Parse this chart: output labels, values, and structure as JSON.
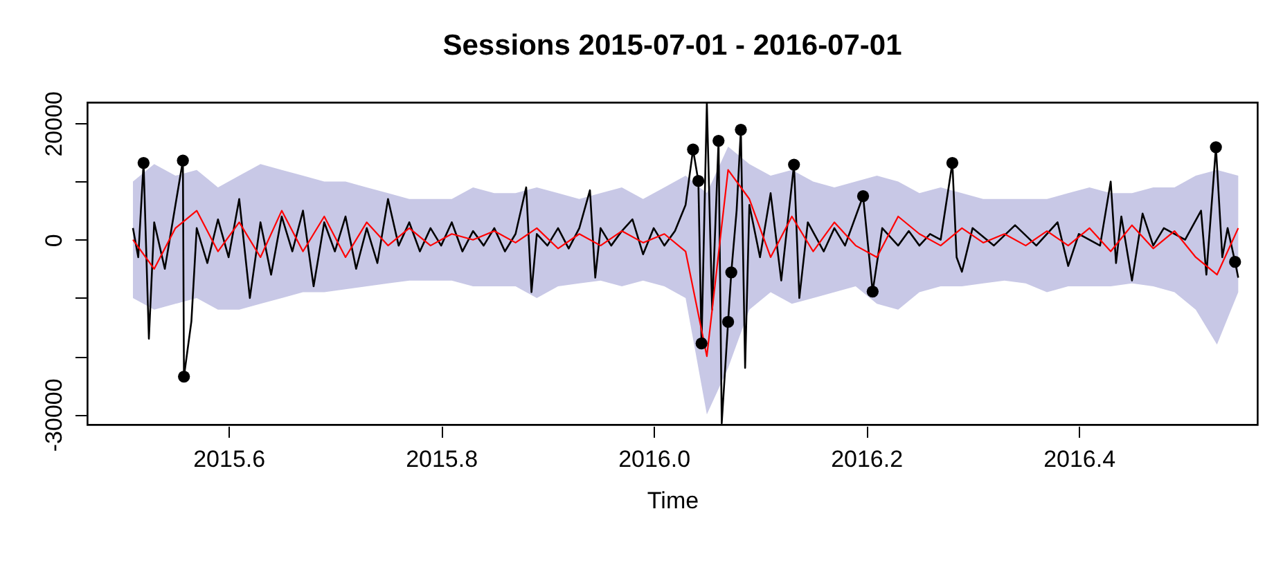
{
  "chart_data": {
    "type": "line",
    "title": "Sessions 2015-07-01 - 2016-07-01",
    "xlabel": "Time",
    "xlim": [
      2015.467,
      2016.568
    ],
    "ylim": [
      -31750,
      23600
    ],
    "xticks": [
      2015.6,
      2015.8,
      {
        "value": 2016,
        "label": "2016.0"
      },
      2016.2,
      2016.4
    ],
    "yticks": [
      -30000,
      {
        "value": -20000,
        "label": null
      },
      {
        "value": -10000,
        "label": null
      },
      0,
      {
        "value": 10000,
        "label": null
      },
      20000
    ],
    "grid": false,
    "marker": "none",
    "line_style": "solid",
    "series": [
      {
        "color": "#000000",
        "x": [
          2015.51,
          2015.515,
          2015.52,
          2015.525,
          2015.53,
          2015.54,
          2015.55,
          2015.557,
          2015.558,
          2015.565,
          2015.57,
          2015.58,
          2015.59,
          2015.6,
          2015.61,
          2015.62,
          2015.63,
          2015.64,
          2015.65,
          2015.66,
          2015.67,
          2015.68,
          2015.69,
          2015.7,
          2015.71,
          2015.72,
          2015.73,
          2015.74,
          2015.75,
          2015.76,
          2015.77,
          2015.78,
          2015.79,
          2015.8,
          2015.81,
          2015.82,
          2015.83,
          2015.84,
          2015.85,
          2015.86,
          2015.87,
          2015.88,
          2015.885,
          2015.89,
          2015.9,
          2015.91,
          2015.92,
          2015.93,
          2015.94,
          2015.945,
          2015.95,
          2015.96,
          2015.97,
          2015.98,
          2015.99,
          2016.0,
          2016.01,
          2016.02,
          2016.03,
          2016.037,
          2016.042,
          2016.045,
          2016.05,
          2016.055,
          2016.061,
          2016.064,
          2016.07,
          2016.073,
          2016.078,
          2016.082,
          2016.086,
          2016.09,
          2016.1,
          2016.11,
          2016.12,
          2016.132,
          2016.137,
          2016.145,
          2016.16,
          2016.17,
          2016.18,
          2016.197,
          2016.206,
          2016.215,
          2016.23,
          2016.24,
          2016.25,
          2016.26,
          2016.27,
          2016.281,
          2016.285,
          2016.29,
          2016.3,
          2016.32,
          2016.34,
          2016.36,
          2016.38,
          2016.39,
          2016.4,
          2016.42,
          2016.43,
          2016.435,
          2016.44,
          2016.45,
          2016.46,
          2016.47,
          2016.48,
          2016.5,
          2016.515,
          2016.52,
          2016.529,
          2016.535,
          2016.54,
          2016.547,
          2016.55
        ],
        "values": [
          2000,
          -3000,
          13200,
          -17000,
          3000,
          -5000,
          6000,
          13600,
          -23500,
          -14000,
          2000,
          -4000,
          3500,
          -3000,
          7000,
          -10000,
          3000,
          -6000,
          4000,
          -2000,
          5000,
          -8000,
          3000,
          -2000,
          4000,
          -5000,
          2000,
          -4000,
          7000,
          -1000,
          3000,
          -2000,
          2000,
          -1000,
          3000,
          -2000,
          1500,
          -1000,
          2000,
          -2000,
          1000,
          9000,
          -9000,
          1000,
          -1000,
          2000,
          -1500,
          2000,
          8500,
          -6500,
          2000,
          -1000,
          1500,
          3500,
          -2500,
          2000,
          -1000,
          1500,
          6000,
          15500,
          10100,
          -17800,
          23500,
          -12000,
          17000,
          -31500,
          -14100,
          -5600,
          5000,
          18900,
          -22000,
          6000,
          -3000,
          8000,
          -7000,
          12900,
          -10000,
          3000,
          -2000,
          2000,
          -1000,
          7500,
          -8900,
          2000,
          -1000,
          1500,
          -1000,
          1000,
          0,
          13200,
          -3000,
          -5500,
          2000,
          -1000,
          2500,
          -1000,
          3000,
          -4500,
          1000,
          -1000,
          10000,
          -4000,
          4000,
          -7000,
          4500,
          -1000,
          2000,
          0,
          5000,
          -6000,
          15900,
          -3000,
          2000,
          -3800,
          -6500
        ]
      },
      {
        "color": "#ff0000",
        "x": [
          2015.51,
          2015.53,
          2015.55,
          2015.57,
          2015.59,
          2015.61,
          2015.63,
          2015.65,
          2015.67,
          2015.69,
          2015.71,
          2015.73,
          2015.75,
          2015.77,
          2015.79,
          2015.81,
          2015.83,
          2015.85,
          2015.87,
          2015.89,
          2015.91,
          2015.93,
          2015.95,
          2015.97,
          2015.99,
          2016.01,
          2016.03,
          2016.05,
          2016.07,
          2016.09,
          2016.11,
          2016.13,
          2016.15,
          2016.17,
          2016.19,
          2016.21,
          2016.23,
          2016.25,
          2016.27,
          2016.29,
          2016.31,
          2016.33,
          2016.35,
          2016.37,
          2016.39,
          2016.41,
          2016.43,
          2016.45,
          2016.47,
          2016.49,
          2016.51,
          2016.53,
          2016.55
        ],
        "values": [
          0,
          -5000,
          2000,
          5000,
          -2000,
          3000,
          -3000,
          5000,
          -2000,
          4000,
          -3000,
          3000,
          -1000,
          2000,
          -1000,
          1000,
          0,
          1500,
          -500,
          2000,
          -1500,
          1000,
          -1000,
          1500,
          -500,
          1000,
          -2000,
          -20000,
          12000,
          7000,
          -3000,
          4000,
          -2000,
          3000,
          -1000,
          -3000,
          4000,
          1000,
          -1000,
          2000,
          -500,
          1000,
          -1000,
          1500,
          -1000,
          2000,
          -2000,
          2500,
          -1500,
          1500,
          -3000,
          -6000,
          2000
        ],
        "lower": [
          -10000,
          -12000,
          -11000,
          -10000,
          -12000,
          -12000,
          -11000,
          -10000,
          -9000,
          -9000,
          -8500,
          -8000,
          -7500,
          -7000,
          -7000,
          -7000,
          -8000,
          -8000,
          -8000,
          -10000,
          -8000,
          -7500,
          -7000,
          -8000,
          -7000,
          -8000,
          -10000,
          -30000,
          -22000,
          -12000,
          -9000,
          -11000,
          -10000,
          -9000,
          -8000,
          -11000,
          -12000,
          -9000,
          -8000,
          -8000,
          -7500,
          -7000,
          -7500,
          -9000,
          -8000,
          -8000,
          -8000,
          -7500,
          -8000,
          -9000,
          -12000,
          -18000,
          -9000
        ],
        "upper": [
          10000,
          13000,
          11000,
          12000,
          9000,
          11000,
          13000,
          12000,
          11000,
          10000,
          10000,
          9000,
          8000,
          7000,
          7000,
          7000,
          9000,
          8000,
          8000,
          9000,
          8000,
          7000,
          8000,
          9000,
          7000,
          9000,
          11000,
          8000,
          16000,
          13000,
          11000,
          12000,
          10000,
          9000,
          10000,
          11000,
          10000,
          8000,
          9000,
          8000,
          7000,
          7000,
          7000,
          7000,
          8000,
          9000,
          8000,
          8000,
          9000,
          9000,
          11000,
          12000,
          11000
        ]
      },
      {
        "color": "#000000",
        "type": "scatter",
        "marker": "circle",
        "x": [
          2015.52,
          2015.557,
          2015.558,
          2016.037,
          2016.042,
          2016.045,
          2016.061,
          2016.07,
          2016.073,
          2016.082,
          2016.132,
          2016.197,
          2016.206,
          2016.281,
          2016.529,
          2016.547
        ],
        "values": [
          13200,
          13600,
          -23500,
          15500,
          10100,
          -17800,
          17000,
          -14100,
          -5600,
          18900,
          12900,
          7500,
          -8900,
          13200,
          15900,
          -3800
        ]
      }
    ]
  }
}
